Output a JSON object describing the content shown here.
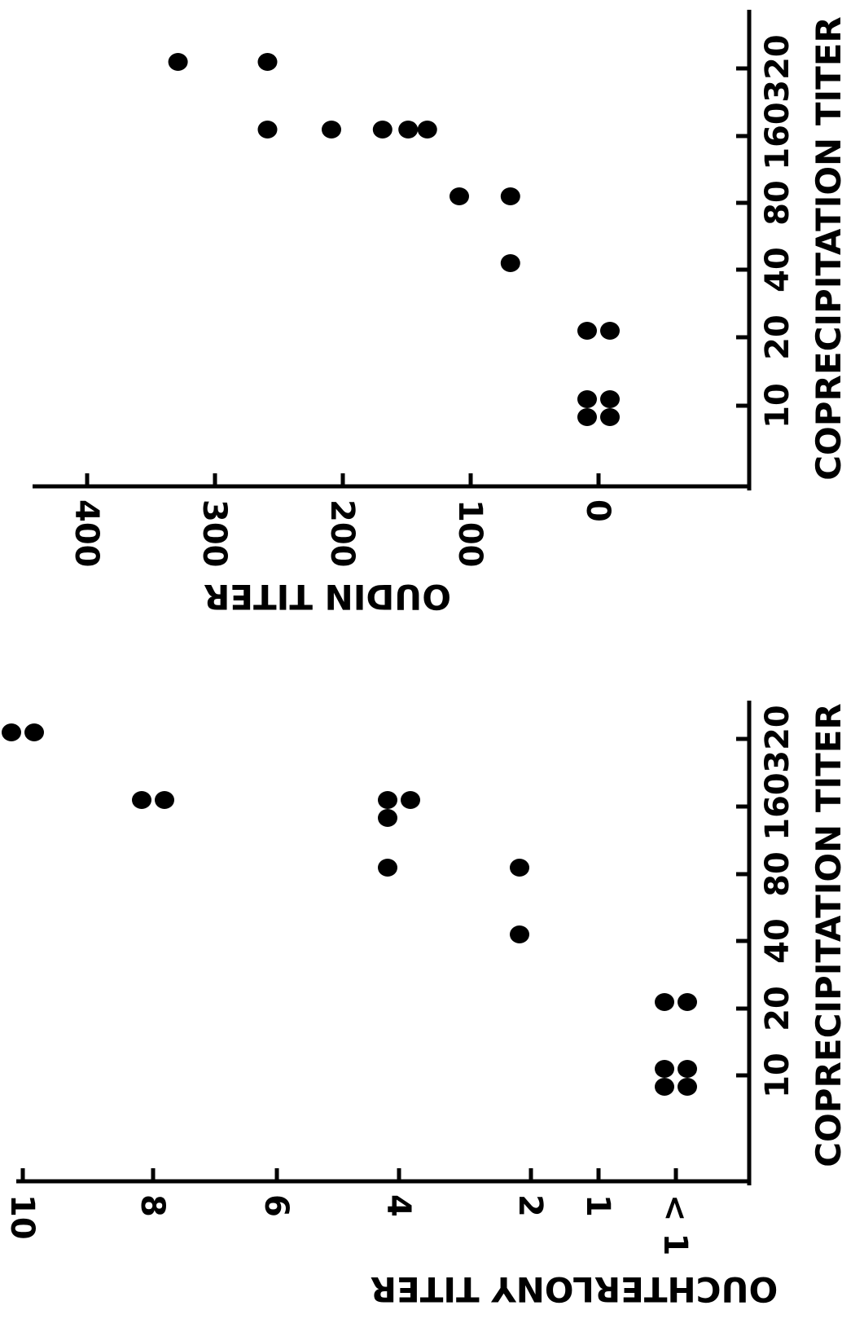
{
  "chart_data": [
    {
      "type": "scatter",
      "title": "",
      "xlabel": "COPRECIPITATION TITER",
      "ylabel": "OUCHTERLONY TITER",
      "x_ticks": [
        "10",
        "20",
        "40",
        "80",
        "160",
        "320"
      ],
      "y_ticks": [
        "< 1",
        "1",
        "2",
        "4",
        "6",
        "8",
        "10"
      ],
      "x_scale": "log2",
      "grid": false,
      "points": [
        {
          "x": 10,
          "y": "< 1"
        },
        {
          "x": 10,
          "y": "< 1"
        },
        {
          "x": 10,
          "y": "< 1"
        },
        {
          "x": 10,
          "y": "< 1"
        },
        {
          "x": 20,
          "y": "< 1"
        },
        {
          "x": 20,
          "y": "< 1"
        },
        {
          "x": 40,
          "y": 2
        },
        {
          "x": 80,
          "y": 2
        },
        {
          "x": 80,
          "y": 4
        },
        {
          "x": 160,
          "y": 4
        },
        {
          "x": 160,
          "y": 4
        },
        {
          "x": 160,
          "y": 4
        },
        {
          "x": 160,
          "y": 8
        },
        {
          "x": 160,
          "y": 8
        },
        {
          "x": 320,
          "y": 10
        },
        {
          "x": 320,
          "y": 10
        }
      ]
    },
    {
      "type": "scatter",
      "title": "",
      "xlabel": "COPRECIPITATION TITER",
      "ylabel": "OUDIN TITER",
      "x_ticks": [
        "10",
        "20",
        "40",
        "80",
        "160",
        "320"
      ],
      "y_ticks": [
        "0",
        "100",
        "200",
        "300",
        "400"
      ],
      "x_scale": "log2",
      "ylim": [
        0,
        400
      ],
      "grid": false,
      "points": [
        {
          "x": 10,
          "y": 0
        },
        {
          "x": 10,
          "y": 0
        },
        {
          "x": 10,
          "y": 0
        },
        {
          "x": 10,
          "y": 0
        },
        {
          "x": 20,
          "y": 0
        },
        {
          "x": 20,
          "y": 0
        },
        {
          "x": 40,
          "y": 60
        },
        {
          "x": 80,
          "y": 60
        },
        {
          "x": 80,
          "y": 100
        },
        {
          "x": 160,
          "y": 125
        },
        {
          "x": 160,
          "y": 140
        },
        {
          "x": 160,
          "y": 160
        },
        {
          "x": 160,
          "y": 200
        },
        {
          "x": 160,
          "y": 250
        },
        {
          "x": 320,
          "y": 250
        },
        {
          "x": 320,
          "y": 320
        }
      ]
    }
  ]
}
